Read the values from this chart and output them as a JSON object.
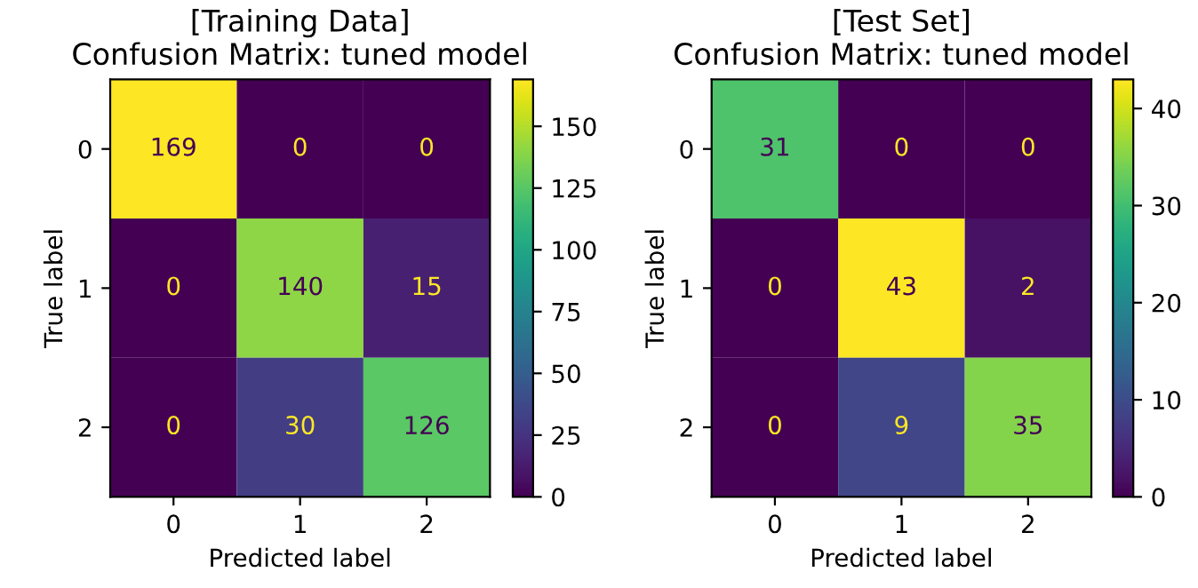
{
  "chart_data": [
    {
      "type": "heatmap",
      "title": "[Training Data]\nConfusion Matrix: tuned model",
      "xlabel": "Predicted label",
      "ylabel": "True label",
      "categories": [
        "0",
        "1",
        "2"
      ],
      "y_categories": [
        "0",
        "1",
        "2"
      ],
      "cells": [
        [
          169,
          0,
          0
        ],
        [
          0,
          140,
          15
        ],
        [
          0,
          30,
          126
        ]
      ],
      "clim": [
        0,
        169
      ],
      "cticks": [
        0,
        25,
        50,
        75,
        100,
        125,
        150
      ],
      "data_labels": true
    },
    {
      "type": "heatmap",
      "title": "[Test Set]\nConfusion Matrix: tuned model",
      "xlabel": "Predicted label",
      "ylabel": "True label",
      "categories": [
        "0",
        "1",
        "2"
      ],
      "y_categories": [
        "0",
        "1",
        "2"
      ],
      "cells": [
        [
          31,
          0,
          0
        ],
        [
          0,
          43,
          2
        ],
        [
          0,
          9,
          35
        ]
      ],
      "clim": [
        0,
        43
      ],
      "cticks": [
        0,
        10,
        20,
        30,
        40
      ],
      "data_labels": true
    }
  ]
}
